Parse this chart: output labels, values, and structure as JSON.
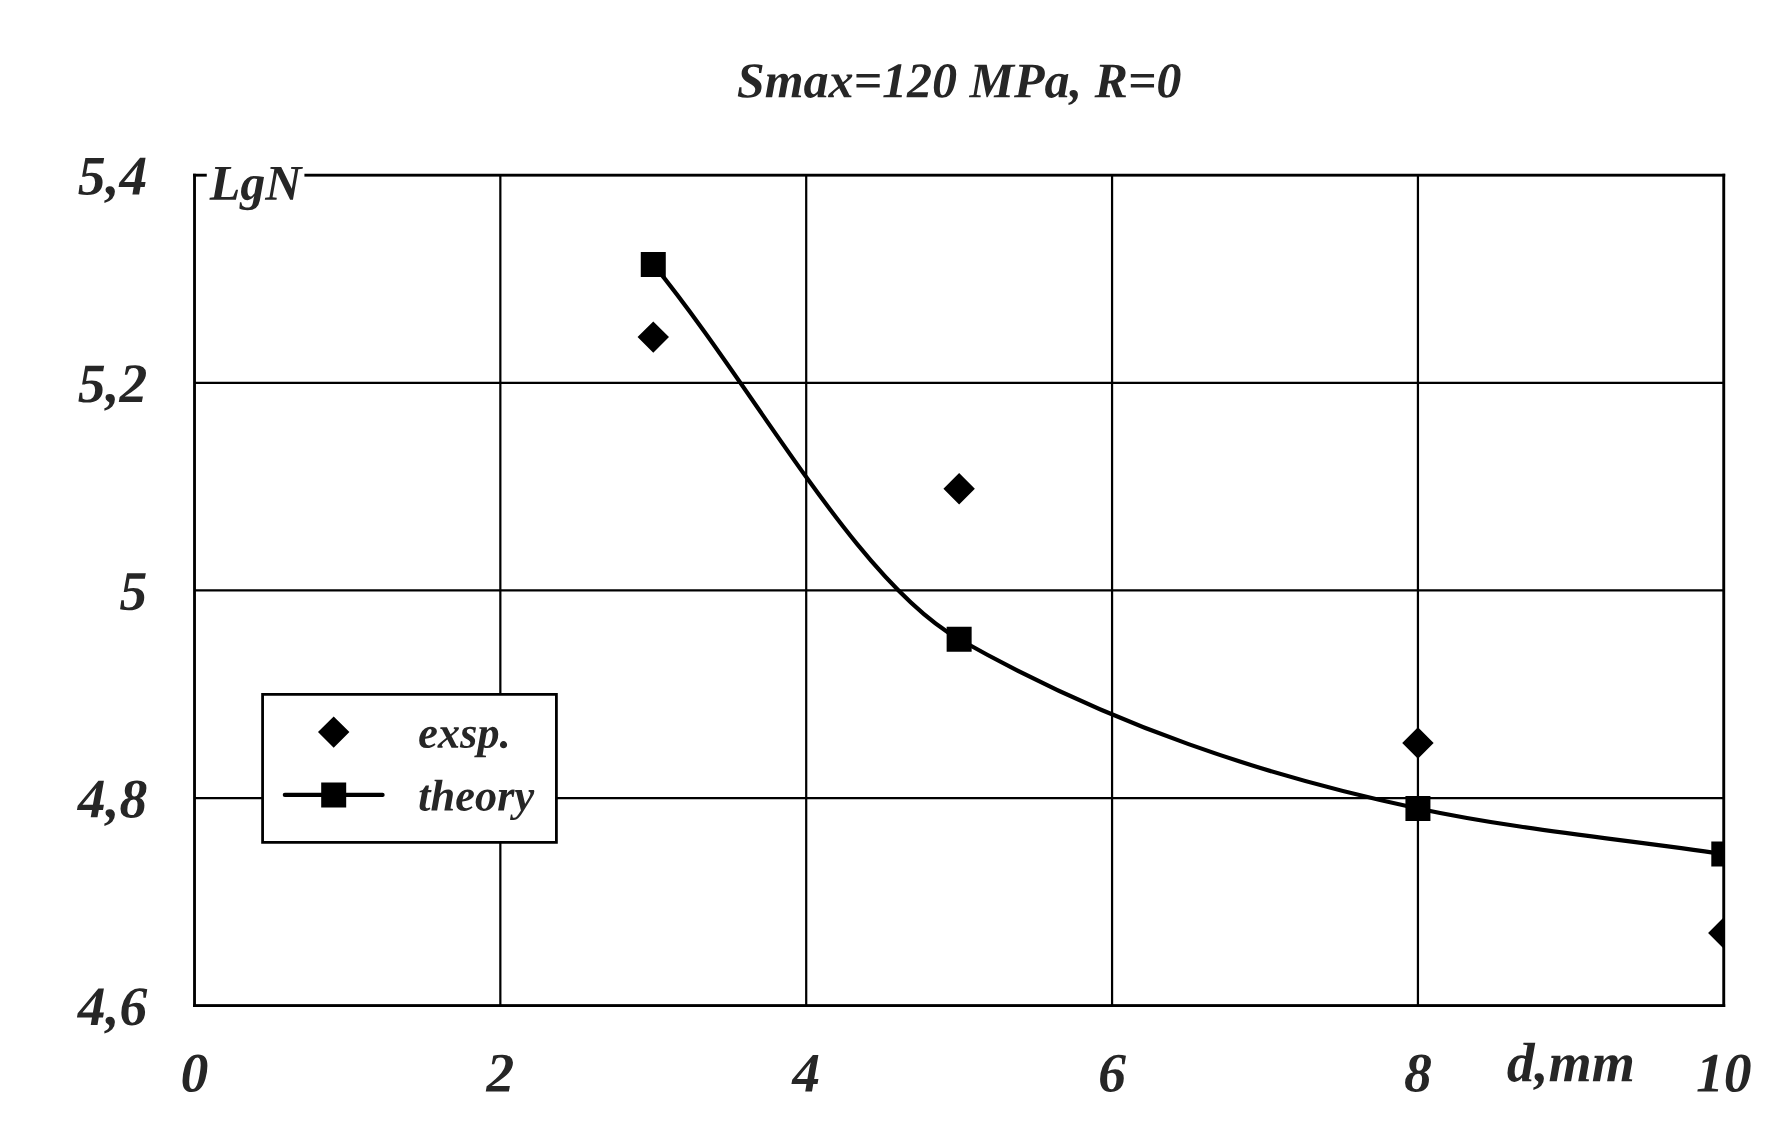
{
  "chart_data": {
    "type": "scatter",
    "title": "Smax=120 MPa, R=0",
    "xlabel": "d,mm",
    "ylabel": "LgN",
    "xlim": [
      0,
      10
    ],
    "ylim": [
      4.6,
      5.4
    ],
    "xticks": [
      0,
      2,
      4,
      6,
      8,
      10
    ],
    "yticks": [
      {
        "value": 4.6,
        "label": "4,6"
      },
      {
        "value": 4.8,
        "label": "4,8"
      },
      5,
      {
        "value": 5.2,
        "label": "5,2"
      },
      {
        "value": 5.4,
        "label": "5,4"
      }
    ],
    "grid": true,
    "legend": "bottom left",
    "series": [
      {
        "name": "exsp.",
        "marker": "diamond",
        "color": "#000000",
        "x": [
          3,
          5,
          8,
          10
        ],
        "values": [
          5.244,
          5.098,
          4.853,
          4.67
        ]
      },
      {
        "name": "theory",
        "type": "line",
        "marker": "square",
        "line_style": "solid",
        "color": "#000000",
        "x": [
          3,
          5,
          8,
          10
        ],
        "values": [
          5.314,
          4.953,
          4.79,
          4.746
        ]
      }
    ]
  }
}
